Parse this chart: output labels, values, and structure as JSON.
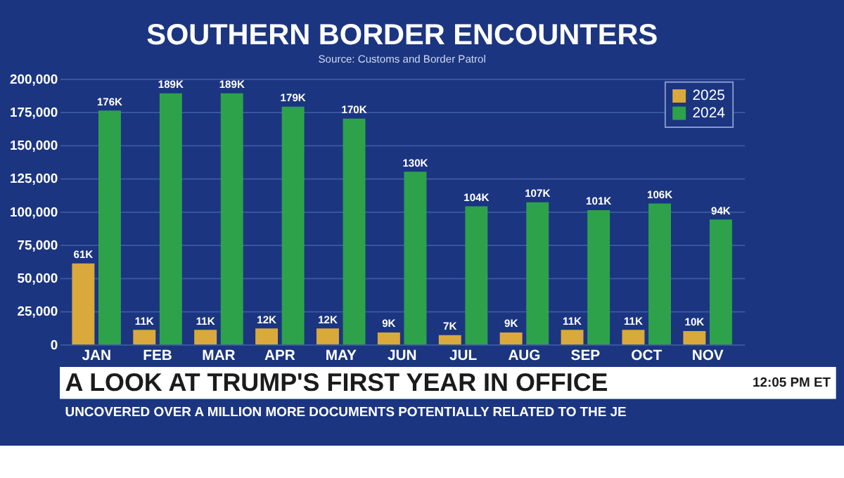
{
  "chart_data": {
    "type": "bar",
    "title": "SOUTHERN BORDER ENCOUNTERS",
    "categories": [
      "JAN",
      "FEB",
      "MAR",
      "APR",
      "MAY",
      "JUN",
      "JUL",
      "AUG",
      "SEP",
      "OCT",
      "NOV"
    ],
    "series": [
      {
        "name": "2025",
        "color": "#d9a93c",
        "values": [
          61000,
          11000,
          11000,
          12000,
          12000,
          9000,
          7000,
          9000,
          11000,
          11000,
          10000
        ],
        "value_labels": [
          "61K",
          "11K",
          "11K",
          "12K",
          "12K",
          "9K",
          "7K",
          "9K",
          "11K",
          "11K",
          "10K"
        ]
      },
      {
        "name": "2024",
        "color": "#2ea24a",
        "values": [
          176000,
          189000,
          189000,
          179000,
          170000,
          130000,
          104000,
          107000,
          101000,
          106000,
          94000
        ],
        "value_labels": [
          "176K",
          "189K",
          "189K",
          "179K",
          "170K",
          "130K",
          "104K",
          "107K",
          "101K",
          "106K",
          "94K"
        ]
      }
    ],
    "ylim": [
      0,
      200000
    ],
    "yticks": [
      {
        "value": 0,
        "label": "0"
      },
      {
        "value": 25000,
        "label": "25,000"
      },
      {
        "value": 50000,
        "label": "50,000"
      },
      {
        "value": 75000,
        "label": "75,000"
      },
      {
        "value": 100000,
        "label": "100,000"
      },
      {
        "value": 125000,
        "label": "125,000"
      },
      {
        "value": 150000,
        "label": "150,000"
      },
      {
        "value": 175000,
        "label": "175,000"
      },
      {
        "value": 200000,
        "label": "200,000"
      }
    ],
    "grid": "y",
    "legend": "top right",
    "annotations": [
      "Source: Customs and Border Patrol",
      "A LOOK AT TRUMP'S FIRST YEAR IN OFFICE",
      "12:05 PM ET",
      "UNCOVERED OVER A MILLION MORE DOCUMENTS POTENTIALLY RELATED TO THE JE"
    ]
  }
}
